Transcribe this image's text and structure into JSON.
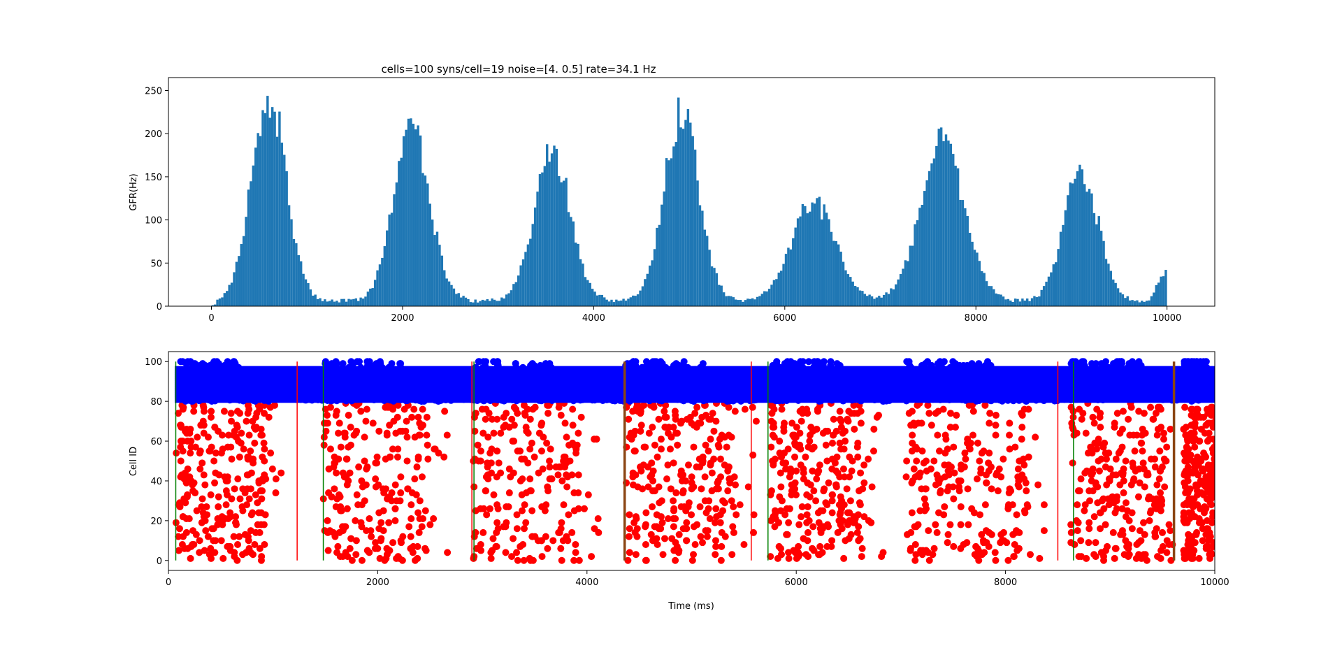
{
  "chart_data": [
    {
      "type": "bar",
      "title": "cells=100 syns/cell=19 noise=[4.  0.5] rate=34.1 Hz",
      "xlabel": "",
      "ylabel": "GFR(Hz)",
      "xlim": [
        -450,
        10500
      ],
      "ylim": [
        0,
        265
      ],
      "grid": false,
      "color": "#1f77b4",
      "bin_width_ms": 25,
      "xticks": [
        "0",
        "2000",
        "4000",
        "6000",
        "8000",
        "10000"
      ],
      "yticks": [
        "0",
        "50",
        "100",
        "150",
        "200",
        "250"
      ],
      "bursts": [
        {
          "center_ms": 600,
          "peak_hz": 256,
          "width_ms": 180
        },
        {
          "center_ms": 2100,
          "peak_hz": 209,
          "width_ms": 190
        },
        {
          "center_ms": 3570,
          "peak_hz": 185,
          "width_ms": 190
        },
        {
          "center_ms": 4920,
          "peak_hz": 235,
          "width_ms": 180
        },
        {
          "center_ms": 6300,
          "peak_hz": 124,
          "width_ms": 230
        },
        {
          "center_ms": 7650,
          "peak_hz": 193,
          "width_ms": 230
        },
        {
          "center_ms": 9100,
          "peak_hz": 164,
          "width_ms": 180
        }
      ],
      "baseline_hz": 6,
      "end_rise": {
        "from_ms": 9800,
        "to_ms": 10000,
        "peak_hz": 38
      }
    },
    {
      "type": "scatter",
      "xlabel": "Time (ms)",
      "ylabel": "Cell ID",
      "xlim": [
        0,
        10000
      ],
      "ylim": [
        -5,
        105
      ],
      "grid": false,
      "xticks": [
        "0",
        "2000",
        "4000",
        "6000",
        "8000",
        "10000"
      ],
      "yticks": [
        "0",
        "20",
        "40",
        "60",
        "80",
        "100"
      ],
      "series": [
        {
          "color": "#0000ff",
          "cells": [
            80,
            100
          ],
          "dense_band": [
            81,
            96
          ],
          "description_ranges_ms": [
            [
              50,
              10000
            ]
          ]
        },
        {
          "color": "#ff0000",
          "cells": [
            0,
            79
          ],
          "bursts_ms": [
            [
              70,
              920
            ],
            [
              1480,
              2480
            ],
            [
              2910,
              3920
            ],
            [
              4370,
              5420
            ],
            [
              5750,
              6650
            ],
            [
              7050,
              8200
            ],
            [
              8620,
              9550
            ],
            [
              9700,
              10000
            ]
          ]
        }
      ],
      "vlines": [
        {
          "x": 70,
          "color": "#008000",
          "width": 1.5
        },
        {
          "x": 1230,
          "color": "#ff0000",
          "width": 1.5
        },
        {
          "x": 1480,
          "color": "#008000",
          "width": 1.5
        },
        {
          "x": 2900,
          "color": "#ff0000",
          "width": 1.5
        },
        {
          "x": 2920,
          "color": "#008000",
          "width": 1.5
        },
        {
          "x": 4360,
          "color": "#8b4513",
          "width": 3.5
        },
        {
          "x": 5570,
          "color": "#ff0000",
          "width": 1.5
        },
        {
          "x": 5730,
          "color": "#008000",
          "width": 1.5
        },
        {
          "x": 8500,
          "color": "#ff0000",
          "width": 1.5
        },
        {
          "x": 8650,
          "color": "#008000",
          "width": 1.5
        },
        {
          "x": 9610,
          "color": "#8b4513",
          "width": 3.5
        }
      ]
    }
  ]
}
